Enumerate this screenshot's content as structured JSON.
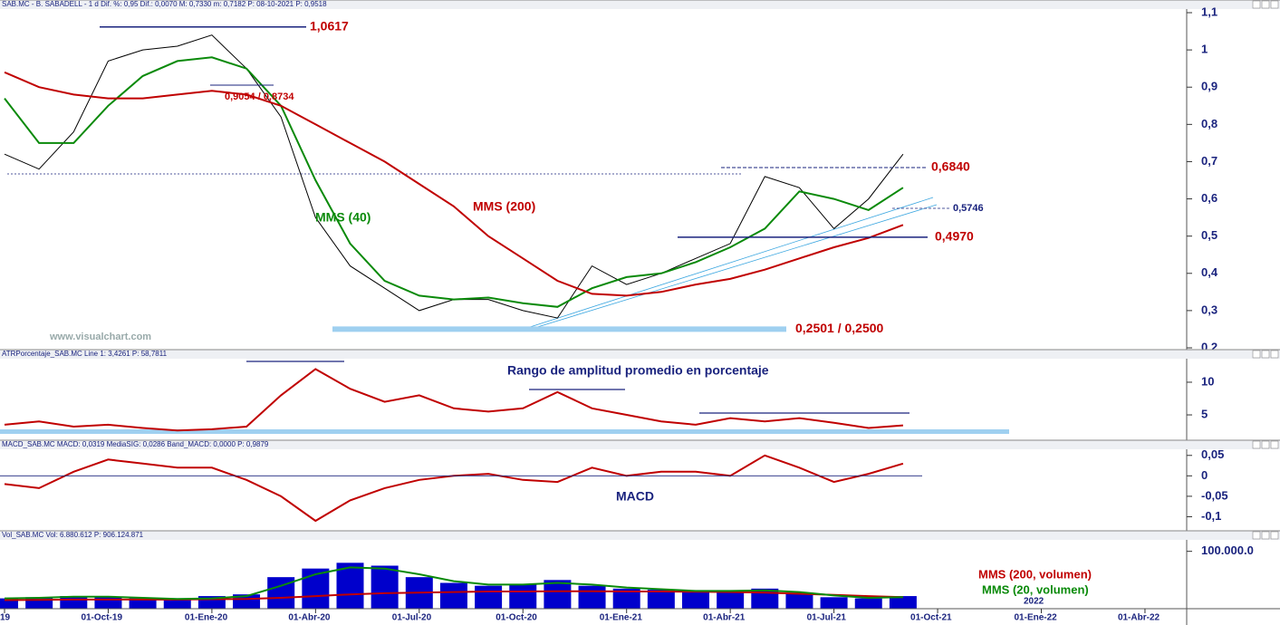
{
  "chart_data": [
    {
      "type": "line",
      "title": "SAB.MC - B. SABADELL - 1 d Dif. %: 0,95 Dif.: 0,0070 M: 0,7330 m: 0,7182 P: 08-10-2021 P: 0,9518",
      "ylim": [
        0.2,
        1.1
      ],
      "yticks": [
        {
          "value": 0.2,
          "label": "0,2"
        },
        {
          "value": 0.3,
          "label": "0,3"
        },
        {
          "value": 0.4,
          "label": "0,4"
        },
        {
          "value": 0.5,
          "label": "0,5"
        },
        {
          "value": 0.6,
          "label": "0,6"
        },
        {
          "value": 0.7,
          "label": "0,7"
        },
        {
          "value": 0.8,
          "label": "0,8"
        },
        {
          "value": 0.9,
          "label": "0,9"
        },
        1,
        {
          "value": 1.1,
          "label": "1,1"
        }
      ],
      "series": [
        {
          "color": "#000000",
          "values": [
            0.72,
            0.68,
            0.78,
            0.97,
            1.0,
            1.01,
            1.04,
            0.95,
            0.82,
            0.55,
            0.42,
            0.36,
            0.3,
            0.33,
            0.33,
            0.3,
            0.28,
            0.42,
            0.37,
            0.4,
            0.44,
            0.48,
            0.66,
            0.63,
            0.52,
            0.6,
            0.72,
            null,
            null,
            null,
            null,
            null,
            null,
            null
          ]
        },
        {
          "name": "MMS (40)",
          "color": "#0a8a0a",
          "values": [
            0.87,
            0.75,
            0.75,
            0.85,
            0.93,
            0.97,
            0.98,
            0.95,
            0.85,
            0.65,
            0.48,
            0.38,
            0.34,
            0.33,
            0.335,
            0.32,
            0.31,
            0.36,
            0.39,
            0.4,
            0.43,
            0.47,
            0.52,
            0.62,
            0.6,
            0.57,
            0.63,
            null,
            null,
            null,
            null,
            null,
            null,
            null
          ]
        },
        {
          "name": "MMS (200)",
          "color": "#c00000",
          "values": [
            0.94,
            0.9,
            0.88,
            0.87,
            0.87,
            0.88,
            0.89,
            0.88,
            0.85,
            0.8,
            0.75,
            0.7,
            0.64,
            0.58,
            0.5,
            0.44,
            0.38,
            0.345,
            0.34,
            0.35,
            0.37,
            0.385,
            0.41,
            0.44,
            0.47,
            0.495,
            0.53,
            null,
            null,
            null,
            null,
            null,
            null,
            null
          ]
        }
      ],
      "annotations": [
        {
          "text": "1,0617",
          "values": [
            1.0617
          ]
        },
        {
          "text": "0,9054 / 0,8734",
          "values": [
            0.9054,
            0.8734
          ]
        },
        {
          "text": "0,6840",
          "values": [
            0.684
          ]
        },
        {
          "text": "0,5746",
          "values": [
            0.5746
          ]
        },
        {
          "text": "0,4970",
          "values": [
            0.497
          ]
        },
        {
          "text": "0,2501 / 0,2500",
          "values": [
            0.2501,
            0.25
          ]
        }
      ],
      "watermark": "www.visualchart.com"
    },
    {
      "type": "line",
      "title": "ATRPorcentaje_SAB.MC Line 1: 3,4261 P: 58,7811",
      "ylim": [
        1.4,
        13.6
      ],
      "yticks": [
        5,
        10
      ],
      "series": [
        {
          "color": "#c00000",
          "values": [
            3.5,
            4,
            3.2,
            3.5,
            3.0,
            2.6,
            2.8,
            3.2,
            8,
            12,
            9,
            7,
            8,
            6,
            5.5,
            6,
            8.5,
            6,
            5,
            4,
            3.5,
            4.5,
            4,
            4.5,
            3.8,
            3,
            3.4,
            null,
            null,
            null,
            null,
            null,
            null,
            null
          ]
        }
      ],
      "label": "Rango de amplitud promedio en porcentaje"
    },
    {
      "type": "line",
      "title": "MACD_SAB.MC MACD: 0,0319 MediaSIG: 0,0286 Band_MACD: 0,0000 P: 0,9879",
      "ylim": [
        -0.13,
        0.065
      ],
      "yticks": [
        {
          "value": 0.05,
          "label": "0,05"
        },
        0,
        {
          "value": -0.05,
          "label": "-0,05"
        },
        {
          "value": -0.1,
          "label": "-0,1"
        }
      ],
      "series": [
        {
          "color": "#c00000",
          "values": [
            -0.02,
            -0.03,
            0.01,
            0.04,
            0.03,
            0.02,
            0.02,
            -0.01,
            -0.05,
            -0.11,
            -0.06,
            -0.03,
            -0.01,
            0.0,
            0.005,
            -0.01,
            -0.015,
            0.02,
            0.0,
            0.01,
            0.01,
            0.0,
            0.05,
            0.02,
            -0.015,
            0.005,
            0.03,
            null,
            null,
            null,
            null,
            null,
            null,
            null
          ]
        }
      ],
      "label": "MACD"
    },
    {
      "type": "bar",
      "title": "Vol_SAB.MC Vol: 6.880.612 P: 906.124.871",
      "ylim": [
        0,
        120000000
      ],
      "yticks": [
        {
          "value": 100000000,
          "label": "100.000.0"
        }
      ],
      "color": "#0000cc",
      "categories": [
        "19",
        null,
        null,
        "01-Oct-19",
        null,
        null,
        "01-Ene-20",
        null,
        null,
        "01-Abr-20",
        null,
        null,
        "01-Jul-20",
        null,
        null,
        "01-Oct-20",
        null,
        null,
        "01-Ene-21",
        null,
        null,
        "01-Abr-21",
        null,
        null,
        "01-Jul-21",
        null,
        null,
        "01-Oct-21",
        null,
        null,
        "01-Ene-22",
        null,
        null,
        "01-Abr-22"
      ],
      "year_label": "2022",
      "values": [
        18000000,
        20000000,
        22000000,
        20000000,
        18000000,
        15000000,
        22000000,
        25000000,
        55000000,
        70000000,
        80000000,
        75000000,
        55000000,
        45000000,
        40000000,
        42000000,
        50000000,
        40000000,
        35000000,
        33000000,
        30000000,
        32000000,
        35000000,
        28000000,
        20000000,
        18000000,
        22000000,
        null,
        null,
        null,
        null,
        null,
        null,
        null
      ],
      "series": [
        {
          "name": "MMS (200, volumen)",
          "color": "#c00000",
          "values": [
            15000000,
            15500000,
            16000000,
            16000000,
            16000000,
            16000000,
            16500000,
            17000000,
            19000000,
            22000000,
            25000000,
            27000000,
            28000000,
            29000000,
            30000000,
            30000000,
            30500000,
            30500000,
            30000000,
            30000000,
            29500000,
            29000000,
            28000000,
            26000000,
            24000000,
            22000000,
            20000000,
            null,
            null,
            null,
            null,
            null,
            null,
            null
          ]
        },
        {
          "name": "MMS (20, volumen)",
          "color": "#0a8a0a",
          "values": [
            18000000,
            19000000,
            21000000,
            21000000,
            19000000,
            17000000,
            18000000,
            22000000,
            40000000,
            60000000,
            72000000,
            70000000,
            60000000,
            48000000,
            42000000,
            42000000,
            45000000,
            42000000,
            37000000,
            34000000,
            31000000,
            31000000,
            32000000,
            29000000,
            23000000,
            19000000,
            20000000,
            null,
            null,
            null,
            null,
            null,
            null,
            null
          ]
        }
      ]
    }
  ]
}
